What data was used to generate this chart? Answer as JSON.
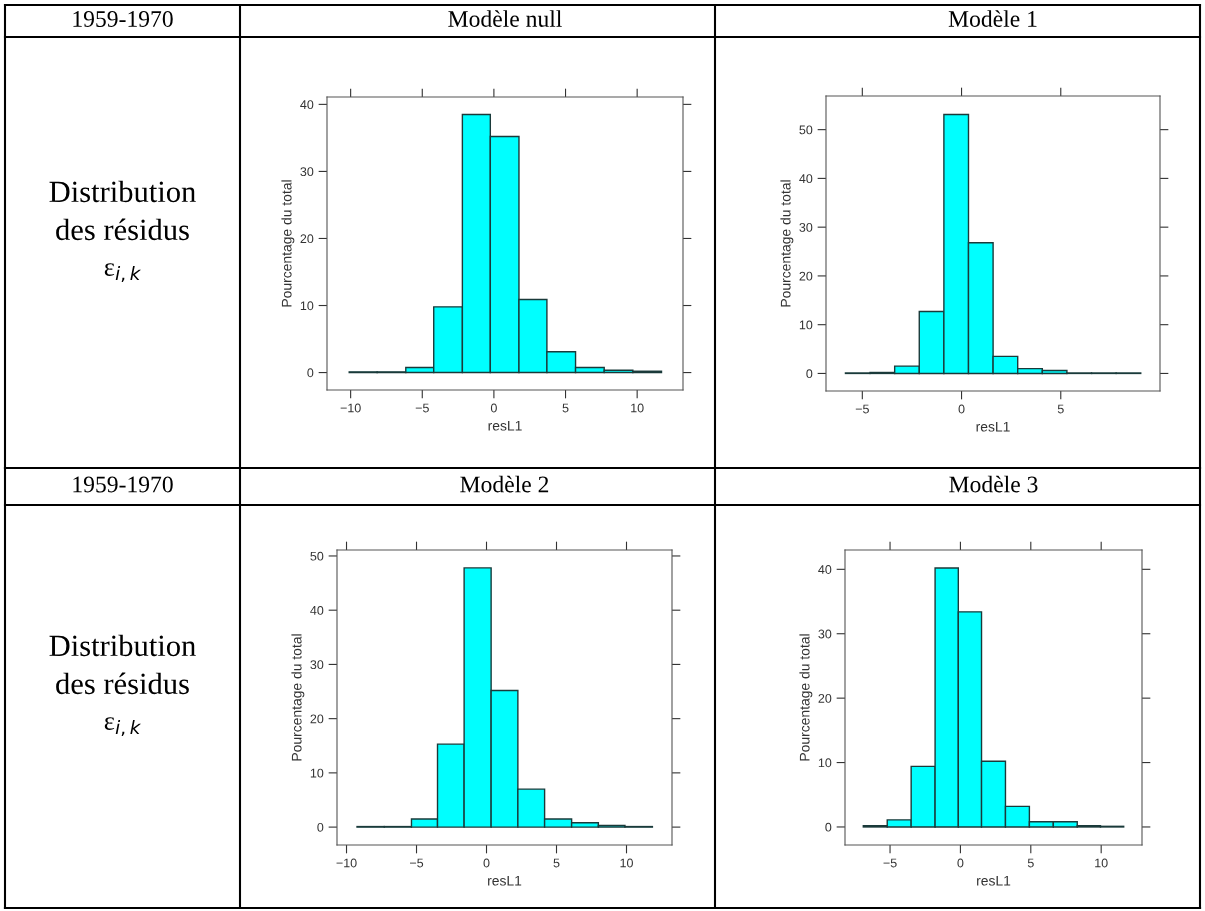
{
  "chart_data": [
    {
      "type": "other",
      "annotations": [
        "1959-1970",
        "Distribution",
        "des résidus",
        "ε$_{i,k}$"
      ]
    },
    {
      "type": "histogram",
      "title": "Modèle null",
      "xlabel": "resL1",
      "ylabel": "Pourcentage du total",
      "color": "#00ffff",
      "bins": [
        -10.1,
        -8.15,
        -6.15,
        -4.2,
        -2.2,
        -0.25,
        1.75,
        3.7,
        5.7,
        7.7,
        9.7,
        11.7
      ],
      "values": [
        0.1,
        0.1,
        0.75,
        9.8,
        38.5,
        35.2,
        10.9,
        3.1,
        0.75,
        0.35,
        0.2
      ],
      "xlim": [
        -11.65,
        13.2
      ],
      "ylim": [
        -2.6,
        41.1
      ],
      "xticks": [
        -10,
        -5,
        0,
        5,
        10
      ],
      "yticks": [
        0,
        10,
        20,
        30,
        40
      ],
      "grid": false
    },
    {
      "type": "histogram",
      "title": "Modèle 1",
      "xlabel": "resL1",
      "ylabel": "Pourcentage du total",
      "color": "#00ffff",
      "bins": [
        -5.85,
        -4.61,
        -3.37,
        -2.13,
        -0.89,
        0.35,
        1.59,
        2.83,
        4.07,
        5.31,
        6.55,
        7.79,
        9.03
      ],
      "values": [
        0.1,
        0.2,
        1.5,
        12.7,
        53.1,
        26.8,
        3.5,
        1.0,
        0.6,
        0.1,
        0.1,
        0.1
      ],
      "xlim": [
        -6.83,
        10.0
      ],
      "ylim": [
        -3.6,
        56.9
      ],
      "xticks": [
        -5,
        0,
        5
      ],
      "yticks": [
        0,
        10,
        20,
        30,
        40,
        50
      ],
      "grid": false
    },
    {
      "type": "other",
      "annotations": [
        "1959-1970",
        "Distribution",
        "des résidus",
        "ε$_{i,k}$"
      ]
    },
    {
      "type": "histogram",
      "title": "Modèle 2",
      "xlabel": "resL1",
      "ylabel": "Pourcentage du total",
      "color": "#00ffff",
      "bins": [
        -9.25,
        -7.3,
        -5.36,
        -3.5,
        -1.6,
        0.33,
        2.24,
        4.15,
        6.08,
        7.99,
        9.89,
        11.85
      ],
      "values": [
        0.1,
        0.1,
        1.5,
        15.3,
        47.8,
        25.2,
        7.0,
        1.5,
        0.8,
        0.3,
        0.1
      ],
      "xlim": [
        -10.68,
        13.25
      ],
      "ylim": [
        -3.3,
        51.1
      ],
      "xticks": [
        -10,
        -5,
        0,
        5,
        10
      ],
      "yticks": [
        0,
        10,
        20,
        30,
        40,
        50
      ],
      "grid": false
    },
    {
      "type": "histogram",
      "title": "Modèle 3",
      "xlabel": "resL1",
      "ylabel": "Pourcentage du total",
      "color": "#00ffff",
      "bins": [
        -6.9,
        -5.2,
        -3.5,
        -1.8,
        -0.15,
        1.5,
        3.2,
        4.9,
        6.6,
        8.3,
        9.95,
        11.6
      ],
      "values": [
        0.2,
        1.1,
        9.4,
        40.2,
        33.4,
        10.2,
        3.2,
        0.8,
        0.8,
        0.2,
        0.1
      ],
      "xlim": [
        -8.2,
        12.9
      ],
      "ylim": [
        -2.8,
        43.0
      ],
      "xticks": [
        -5,
        0,
        5,
        10
      ],
      "yticks": [
        0,
        10,
        20,
        30,
        40
      ],
      "grid": false
    }
  ]
}
